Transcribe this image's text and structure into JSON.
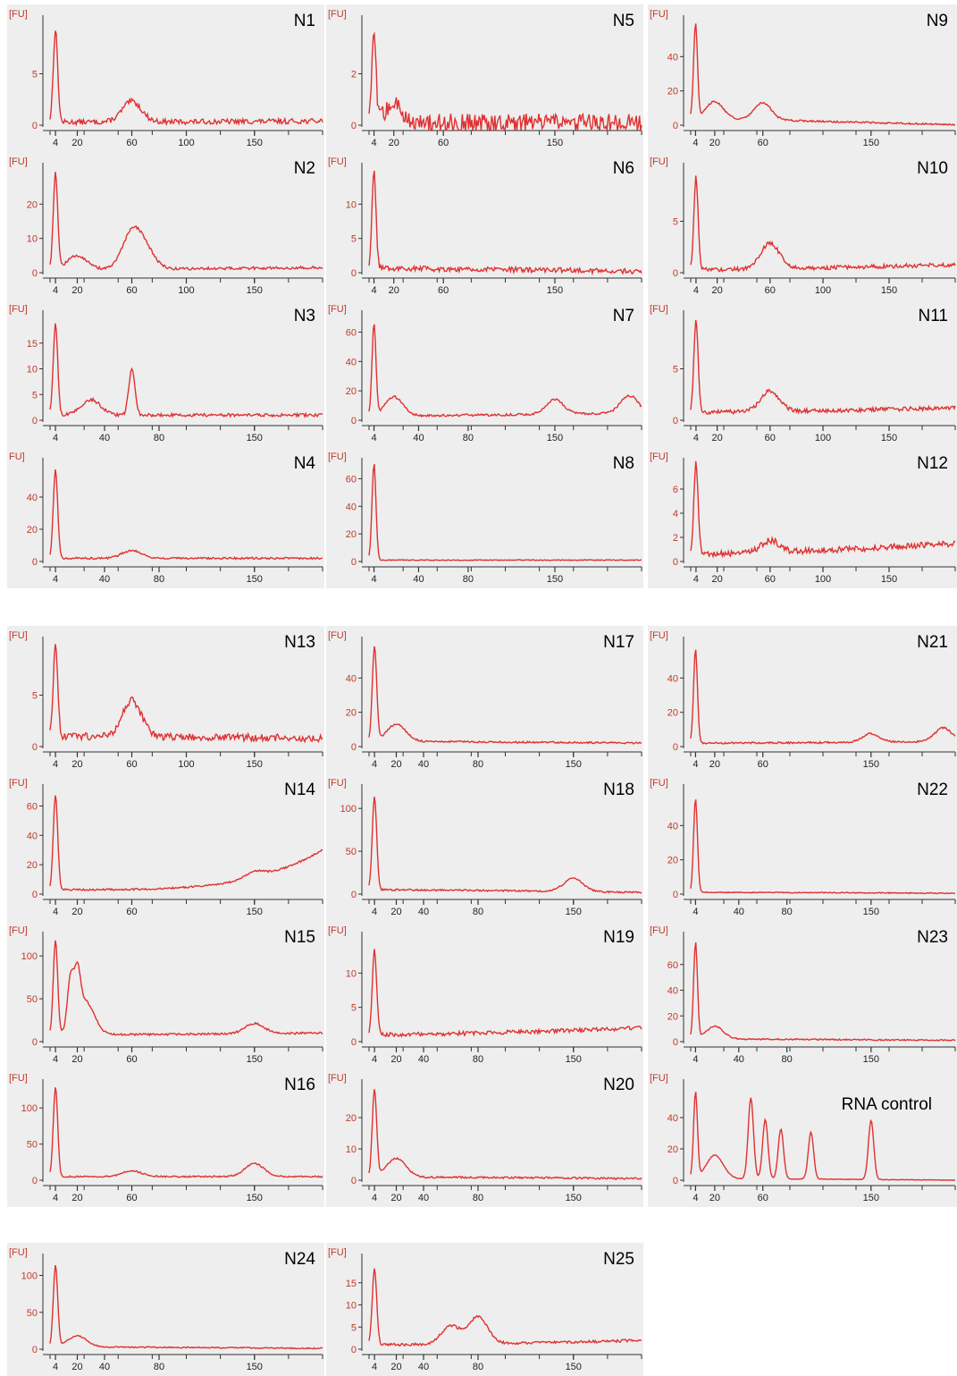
{
  "chart_data": [
    {
      "id": "N1",
      "type": "line",
      "title": "N1",
      "yunit": "[FU]",
      "yticks": [
        0,
        5
      ],
      "ymax": 10,
      "xticks": [
        4,
        20,
        60,
        100,
        150
      ],
      "xmax": 200,
      "peaks": [
        [
          4,
          9
        ],
        [
          60,
          2
        ]
      ],
      "baseline": 0.3,
      "tail": 0.4,
      "noise": 0.25
    },
    {
      "id": "N2",
      "type": "line",
      "title": "N2",
      "yunit": "[FU]",
      "yticks": [
        0,
        10,
        20
      ],
      "ymax": 30,
      "xticks": [
        4,
        20,
        60,
        100,
        150
      ],
      "xmax": 200,
      "peaks": [
        [
          4,
          28
        ],
        [
          20,
          4
        ],
        [
          60,
          10
        ],
        [
          70,
          5
        ]
      ],
      "baseline": 1,
      "tail": 1.5,
      "noise": 0.4
    },
    {
      "id": "N3",
      "type": "line",
      "title": "N3",
      "yunit": "[FU]",
      "yticks": [
        0,
        5,
        10,
        15
      ],
      "ymax": 20,
      "xticks": [
        4,
        40,
        80,
        150
      ],
      "xmax": 200,
      "peaks": [
        [
          4,
          18
        ],
        [
          30,
          3
        ],
        [
          60,
          9
        ]
      ],
      "baseline": 1,
      "tail": 1,
      "noise": 0.3
    },
    {
      "id": "N4",
      "type": "line",
      "title": "N4",
      "yunit": "FU]",
      "yticks": [
        0,
        20,
        40
      ],
      "ymax": 60,
      "xticks": [
        4,
        40,
        80,
        150
      ],
      "xmax": 200,
      "peaks": [
        [
          4,
          55
        ],
        [
          60,
          5
        ]
      ],
      "baseline": 2,
      "tail": 2,
      "noise": 0.6
    },
    {
      "id": "N5",
      "type": "line",
      "title": "N5",
      "yunit": "[FU]",
      "yticks": [
        0,
        2
      ],
      "ymax": 4,
      "xticks": [
        4,
        20,
        60,
        150
      ],
      "xmax": 220,
      "peaks": [
        [
          4,
          3.5
        ],
        [
          20,
          0.7
        ]
      ],
      "baseline": 0.1,
      "tail": 0.1,
      "noise": 0.35
    },
    {
      "id": "N6",
      "type": "line",
      "title": "N6",
      "yunit": "[FU]",
      "yticks": [
        0,
        5,
        10
      ],
      "ymax": 15,
      "xticks": [
        4,
        20,
        60,
        150
      ],
      "xmax": 220,
      "peaks": [
        [
          4,
          14
        ]
      ],
      "baseline": 0.5,
      "tail": -2,
      "noise": 0.4
    },
    {
      "id": "N7",
      "type": "line",
      "title": "N7",
      "yunit": "[FU]",
      "yticks": [
        0,
        20,
        40,
        60
      ],
      "ymax": 70,
      "xticks": [
        4,
        40,
        80,
        150
      ],
      "xmax": 220,
      "peaks": [
        [
          4,
          62
        ],
        [
          20,
          13
        ],
        [
          150,
          10
        ],
        [
          210,
          12
        ]
      ],
      "baseline": 3,
      "tail": 5,
      "noise": 0.8
    },
    {
      "id": "N8",
      "type": "line",
      "title": "N8",
      "yunit": "[FU]",
      "yticks": [
        0,
        20,
        40,
        60
      ],
      "ymax": 70,
      "xticks": [
        4,
        40,
        80,
        150
      ],
      "xmax": 220,
      "peaks": [
        [
          4,
          70
        ]
      ],
      "baseline": 1,
      "tail": 1,
      "noise": 0.3
    },
    {
      "id": "N9",
      "type": "line",
      "title": "N9",
      "yunit": "[FU]",
      "yticks": [
        0,
        20,
        40
      ],
      "ymax": 60,
      "xticks": [
        4,
        20,
        60,
        150
      ],
      "xmax": 220,
      "peaks": [
        [
          4,
          55
        ],
        [
          20,
          10
        ],
        [
          60,
          10
        ]
      ],
      "baseline": 4,
      "tail": -2,
      "noise": 0.5
    },
    {
      "id": "N10",
      "type": "line",
      "title": "N10",
      "yunit": "[FU]",
      "yticks": [
        0,
        5
      ],
      "ymax": 10,
      "xticks": [
        4,
        20,
        60,
        100,
        150
      ],
      "xmax": 200,
      "peaks": [
        [
          4,
          9
        ],
        [
          60,
          2.5
        ]
      ],
      "baseline": 0.3,
      "tail": 0.8,
      "noise": 0.2
    },
    {
      "id": "N11",
      "type": "line",
      "title": "N11",
      "yunit": "[FU]",
      "yticks": [
        0,
        5
      ],
      "ymax": 10,
      "xticks": [
        4,
        20,
        60,
        100,
        150
      ],
      "xmax": 200,
      "peaks": [
        [
          4,
          9
        ],
        [
          60,
          2
        ]
      ],
      "baseline": 0.8,
      "tail": 1.2,
      "noise": 0.2
    },
    {
      "id": "N12",
      "type": "line",
      "title": "N12",
      "yunit": "[FU]",
      "yticks": [
        0,
        2,
        4,
        6
      ],
      "ymax": 8,
      "xticks": [
        4,
        20,
        60,
        100,
        150
      ],
      "xmax": 200,
      "peaks": [
        [
          4,
          7.5
        ],
        [
          60,
          1
        ]
      ],
      "baseline": 0.6,
      "tail": 1.5,
      "noise": 0.25
    },
    {
      "id": "N13",
      "type": "line",
      "title": "N13",
      "yunit": "[FU]",
      "yticks": [
        0,
        5
      ],
      "ymax": 10,
      "xticks": [
        4,
        20,
        60,
        100,
        150
      ],
      "xmax": 200,
      "peaks": [
        [
          4,
          9
        ],
        [
          60,
          3.5
        ]
      ],
      "baseline": 1,
      "tail": 0.8,
      "noise": 0.35
    },
    {
      "id": "N14",
      "type": "line",
      "title": "N14",
      "yunit": "[FU]",
      "yticks": [
        0,
        20,
        40,
        60
      ],
      "ymax": 70,
      "xticks": [
        4,
        20,
        60,
        150
      ],
      "xmax": 200,
      "peaks": [
        [
          4,
          65
        ],
        [
          150,
          4
        ]
      ],
      "baseline": 3,
      "tail": 30,
      "noise": 0.6
    },
    {
      "id": "N15",
      "type": "line",
      "title": "N15",
      "yunit": "[FU]",
      "yticks": [
        0,
        50,
        100
      ],
      "ymax": 120,
      "xticks": [
        4,
        20,
        60,
        150
      ],
      "xmax": 200,
      "peaks": [
        [
          4,
          110
        ],
        [
          15,
          55
        ],
        [
          20,
          50
        ],
        [
          25,
          40
        ],
        [
          150,
          12
        ]
      ],
      "baseline": 8,
      "tail": 10,
      "noise": 1.2
    },
    {
      "id": "N16",
      "type": "line",
      "title": "N16",
      "yunit": "[FU]",
      "yticks": [
        0,
        50,
        100
      ],
      "ymax": 130,
      "xticks": [
        4,
        20,
        60,
        150
      ],
      "xmax": 200,
      "peaks": [
        [
          4,
          125
        ],
        [
          60,
          8
        ],
        [
          150,
          18
        ]
      ],
      "baseline": 5,
      "tail": 5,
      "noise": 1
    },
    {
      "id": "N17",
      "type": "line",
      "title": "N17",
      "yunit": "[FU]",
      "yticks": [
        0,
        20,
        40
      ],
      "ymax": 60,
      "xticks": [
        4,
        20,
        40,
        80,
        150
      ],
      "xmax": 200,
      "peaks": [
        [
          4,
          55
        ],
        [
          20,
          10
        ]
      ],
      "baseline": 3,
      "tail": 2,
      "noise": 0.5
    },
    {
      "id": "N18",
      "type": "line",
      "title": "N18",
      "yunit": "[FU]",
      "yticks": [
        0,
        50,
        100
      ],
      "ymax": 120,
      "xticks": [
        4,
        20,
        40,
        80,
        150
      ],
      "xmax": 200,
      "peaks": [
        [
          4,
          110
        ],
        [
          150,
          15
        ]
      ],
      "baseline": 5,
      "tail": 2,
      "noise": 1
    },
    {
      "id": "N19",
      "type": "line",
      "title": "N19",
      "yunit": "[FU]",
      "yticks": [
        0,
        5,
        10
      ],
      "ymax": 15,
      "xticks": [
        4,
        20,
        40,
        80,
        150
      ],
      "xmax": 200,
      "peaks": [
        [
          4,
          12.5
        ]
      ],
      "baseline": 1,
      "tail": 2,
      "noise": 0.3
    },
    {
      "id": "N20",
      "type": "line",
      "title": "N20",
      "yunit": "[FU]",
      "yticks": [
        0,
        10,
        20
      ],
      "ymax": 30,
      "xticks": [
        4,
        20,
        40,
        80,
        150
      ],
      "xmax": 200,
      "peaks": [
        [
          4,
          28
        ],
        [
          20,
          6
        ]
      ],
      "baseline": 1,
      "tail": 0.5,
      "noise": 0.3
    },
    {
      "id": "N21",
      "type": "line",
      "title": "N21",
      "yunit": "[FU]",
      "yticks": [
        0,
        20,
        40
      ],
      "ymax": 60,
      "xticks": [
        4,
        20,
        60,
        150
      ],
      "xmax": 220,
      "peaks": [
        [
          4,
          55
        ],
        [
          150,
          5
        ],
        [
          210,
          8
        ]
      ],
      "baseline": 2,
      "tail": 3,
      "noise": 0.5
    },
    {
      "id": "N22",
      "type": "line",
      "title": "N22",
      "yunit": "[FU]",
      "yticks": [
        0,
        20,
        40
      ],
      "ymax": 60,
      "xticks": [
        4,
        40,
        80,
        150
      ],
      "xmax": 220,
      "peaks": [
        [
          4,
          55
        ]
      ],
      "baseline": 1,
      "tail": 0.5,
      "noise": 0.3
    },
    {
      "id": "N23",
      "type": "line",
      "title": "N23",
      "yunit": "[FU]",
      "yticks": [
        0,
        20,
        40,
        60
      ],
      "ymax": 80,
      "xticks": [
        4,
        40,
        80,
        150
      ],
      "xmax": 220,
      "peaks": [
        [
          4,
          75
        ],
        [
          20,
          10
        ]
      ],
      "baseline": 2,
      "tail": 1,
      "noise": 0.5
    },
    {
      "id": "RNA-control",
      "type": "line",
      "title": "RNA control",
      "yunit": "[FU]",
      "yticks": [
        0,
        20,
        40
      ],
      "ymax": 60,
      "xticks": [
        4,
        20,
        60,
        150
      ],
      "xmax": 220,
      "peaks": [
        [
          4,
          55
        ],
        [
          20,
          15
        ],
        [
          50,
          52
        ],
        [
          62,
          38
        ],
        [
          75,
          32
        ],
        [
          100,
          30
        ],
        [
          150,
          38
        ]
      ],
      "baseline": 1,
      "tail": 0,
      "noise": 0.2
    },
    {
      "id": "N24",
      "type": "line",
      "title": "N24",
      "yunit": "[FU]",
      "yticks": [
        0,
        50,
        100
      ],
      "ymax": 120,
      "xticks": [
        4,
        20,
        40,
        80,
        150
      ],
      "xmax": 200,
      "peaks": [
        [
          4,
          110
        ],
        [
          20,
          15
        ]
      ],
      "baseline": 3,
      "tail": 1,
      "noise": 0.8
    },
    {
      "id": "N25",
      "type": "line",
      "title": "N25",
      "yunit": "[FU]",
      "yticks": [
        0,
        5,
        10,
        15
      ],
      "ymax": 20,
      "xticks": [
        4,
        20,
        40,
        80,
        150
      ],
      "xmax": 200,
      "peaks": [
        [
          4,
          17.5
        ],
        [
          60,
          4
        ],
        [
          80,
          6
        ]
      ],
      "baseline": 1,
      "tail": 2,
      "noise": 0.3
    }
  ]
}
